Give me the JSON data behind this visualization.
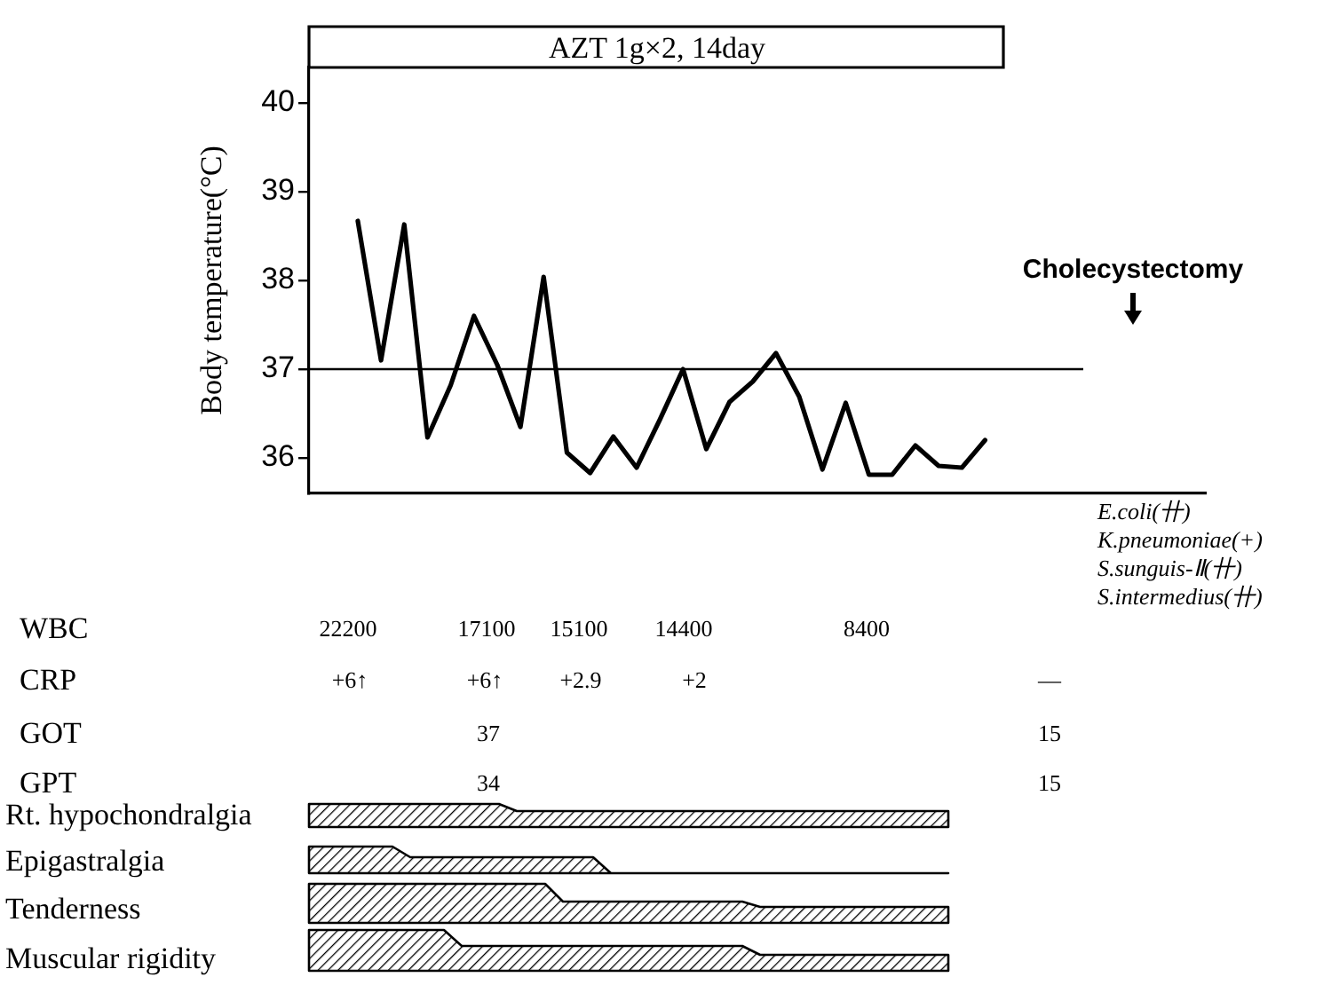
{
  "chart_data": {
    "type": "line",
    "ylabel": "Body temperature(°C)",
    "categories": [
      null,
      null,
      null,
      null,
      null,
      null,
      null,
      null,
      null,
      null,
      null,
      null,
      null,
      null,
      null,
      null,
      null,
      null,
      null,
      null,
      null,
      null,
      null,
      null,
      null,
      null,
      null,
      null
    ],
    "series": [
      {
        "color": "#000000",
        "values": [
          38.67,
          37.1,
          38.63,
          36.23,
          36.82,
          37.6,
          37.05,
          36.35,
          38.04,
          36.06,
          35.83,
          36.24,
          35.89,
          36.43,
          37.0,
          36.1,
          36.63,
          36.86,
          37.18,
          36.69,
          35.87,
          36.62,
          35.81,
          35.81,
          36.14,
          35.91,
          35.89,
          36.2
        ]
      }
    ],
    "ylim": [
      35.6,
      40.4
    ],
    "yticks": [
      36,
      37,
      38,
      39,
      40
    ],
    "tick_labels": "y",
    "grid": false,
    "legend": false,
    "marker": "none",
    "line_style": "solid",
    "ref_lines": [
      {
        "axis": "y",
        "value": 37,
        "color": "#000000"
      }
    ],
    "annotations": [
      "AZT 1g×2, 14day",
      "Cholecystectomy",
      "E.coli(卄)",
      "K.pneumoniae(+)",
      "S.sunguis-Ⅱ(卄)",
      "S.intermedius(卄)",
      "WBC",
      "22200",
      "17100",
      "15100",
      "14400",
      "8400",
      "CRP",
      "+6↑",
      "+6↑",
      "+2.9",
      "+2",
      "—",
      "GOT",
      "37",
      "15",
      "GPT",
      "34",
      "15",
      "Rt. hypochondralgia",
      "Epigastralgia",
      "Tenderness",
      "Muscular rigidity"
    ]
  }
}
